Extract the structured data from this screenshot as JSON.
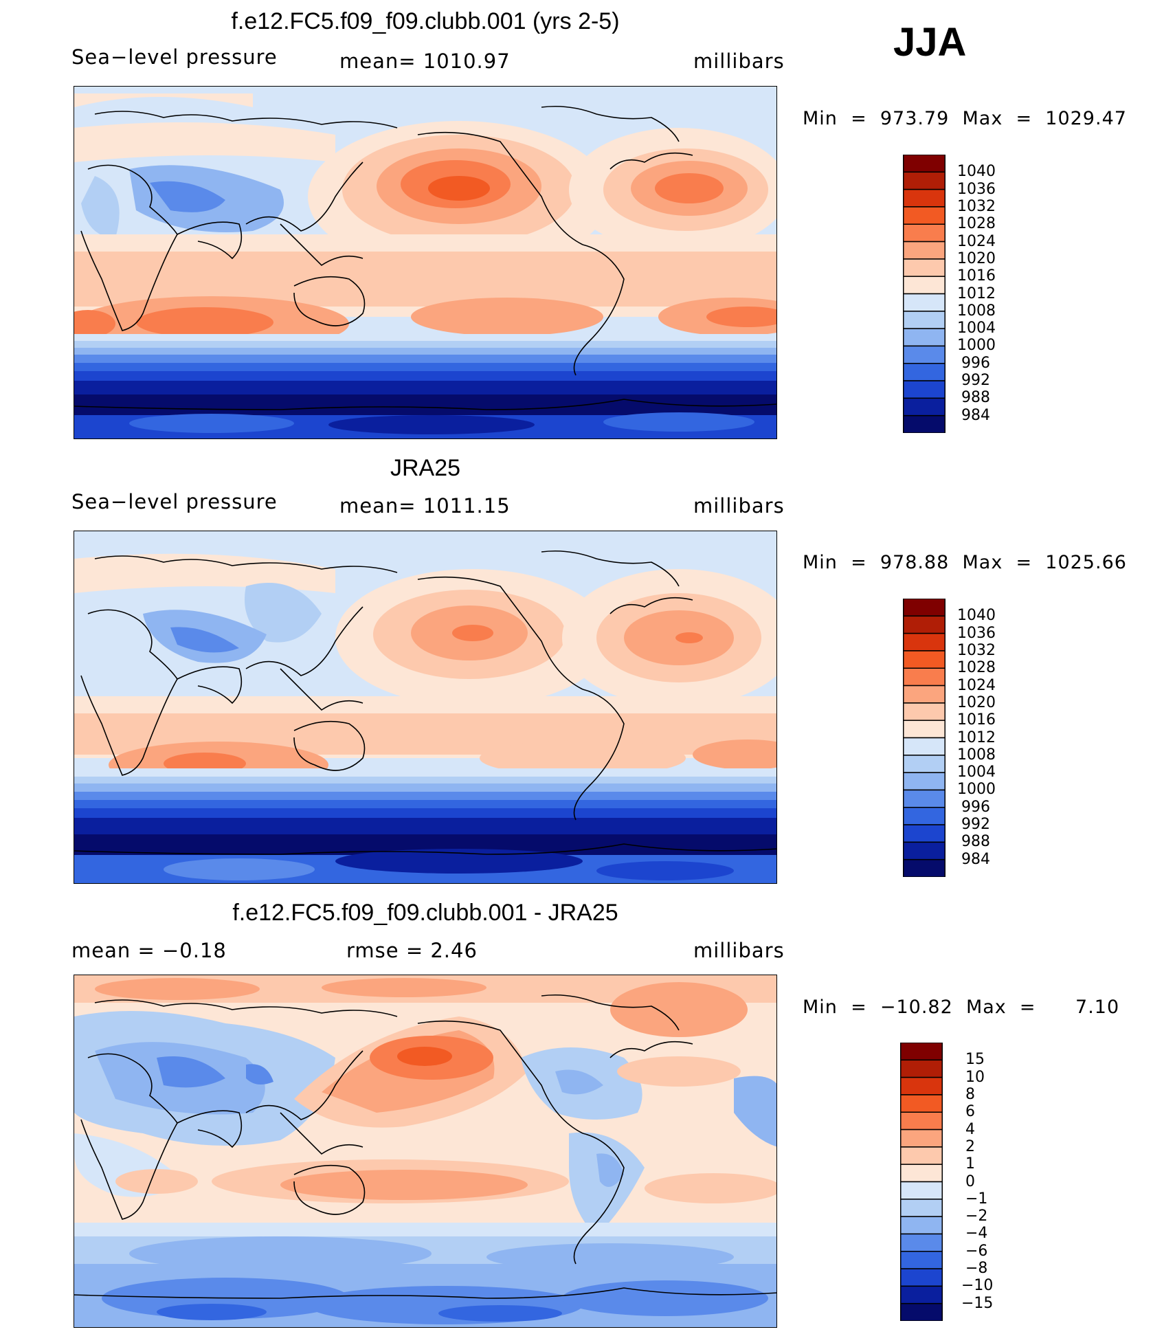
{
  "season": "JJA",
  "panels": [
    {
      "id": "model",
      "title": "f.e12.FC5.f09_f09.clubb.001 (yrs 2-5)",
      "subtitle_left": "Sea−level pressure",
      "subtitle_center": "mean=  1010.97",
      "subtitle_right": "millibars",
      "minmax": "Min  =  973.79  Max  =  1029.47",
      "colorbar": {
        "levels": [
          "1040",
          "1036",
          "1032",
          "1028",
          "1024",
          "1020",
          "1016",
          "1012",
          "1008",
          "1004",
          "1000",
          "996",
          "992",
          "988",
          "984"
        ],
        "colors": [
          "#7f0000",
          "#b01e06",
          "#d9350d",
          "#f25a23",
          "#f97d4d",
          "#fba57e",
          "#fdc9ad",
          "#fde6d6",
          "#d6e6f9",
          "#b2cff4",
          "#8fb5f1",
          "#5a8aea",
          "#3366e0",
          "#1c45cf",
          "#0a1f9e",
          "#050b6b"
        ]
      }
    },
    {
      "id": "obs",
      "title": "JRA25",
      "subtitle_left": "Sea−level pressure",
      "subtitle_center": "mean=  1011.15",
      "subtitle_right": "millibars",
      "minmax": "Min  =  978.88  Max  =  1025.66",
      "colorbar": {
        "levels": [
          "1040",
          "1036",
          "1032",
          "1028",
          "1024",
          "1020",
          "1016",
          "1012",
          "1008",
          "1004",
          "1000",
          "996",
          "992",
          "988",
          "984"
        ],
        "colors": [
          "#7f0000",
          "#b01e06",
          "#d9350d",
          "#f25a23",
          "#f97d4d",
          "#fba57e",
          "#fdc9ad",
          "#fde6d6",
          "#d6e6f9",
          "#b2cff4",
          "#8fb5f1",
          "#5a8aea",
          "#3366e0",
          "#1c45cf",
          "#0a1f9e",
          "#050b6b"
        ]
      }
    },
    {
      "id": "diff",
      "title": "f.e12.FC5.f09_f09.clubb.001 - JRA25",
      "subtitle_left": "mean  =     −0.18",
      "subtitle_center": "rmse  =     2.46",
      "subtitle_right": "millibars",
      "minmax": "Min  =  −10.82  Max  =      7.10",
      "colorbar": {
        "levels": [
          "15",
          "10",
          "8",
          "6",
          "4",
          "2",
          "1",
          "0",
          "−1",
          "−2",
          "−4",
          "−6",
          "−8",
          "−10",
          "−15"
        ],
        "colors": [
          "#7f0000",
          "#b01e06",
          "#d9350d",
          "#f25a23",
          "#f97d4d",
          "#fba57e",
          "#fdc9ad",
          "#fde6d6",
          "#d6e6f9",
          "#b2cff4",
          "#8fb5f1",
          "#5a8aea",
          "#3366e0",
          "#1c45cf",
          "#0a1f9e",
          "#050b6b"
        ]
      }
    }
  ]
}
